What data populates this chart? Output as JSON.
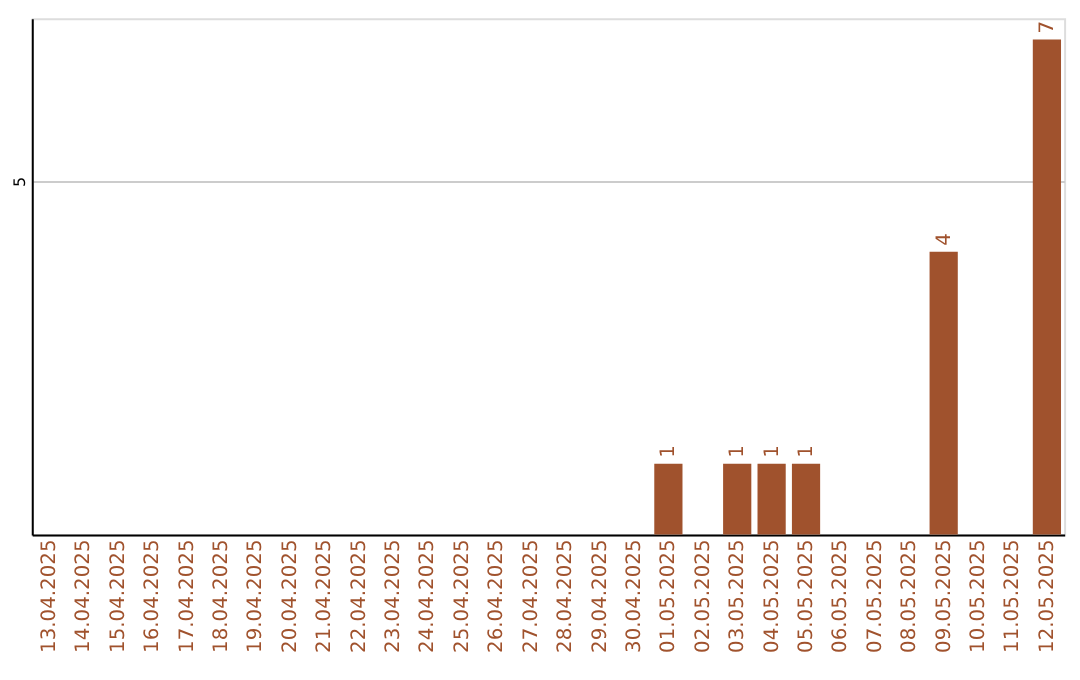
{
  "chart_data": {
    "type": "bar",
    "categories": [
      "13.04.2025",
      "14.04.2025",
      "15.04.2025",
      "16.04.2025",
      "17.04.2025",
      "18.04.2025",
      "19.04.2025",
      "20.04.2025",
      "21.04.2025",
      "22.04.2025",
      "23.04.2025",
      "24.04.2025",
      "25.04.2025",
      "26.04.2025",
      "27.04.2025",
      "28.04.2025",
      "29.04.2025",
      "30.04.2025",
      "01.05.2025",
      "02.05.2025",
      "03.05.2025",
      "04.05.2025",
      "05.05.2025",
      "06.05.2025",
      "07.05.2025",
      "08.05.2025",
      "09.05.2025",
      "10.05.2025",
      "11.05.2025",
      "12.05.2025"
    ],
    "values": [
      null,
      null,
      null,
      null,
      null,
      null,
      null,
      null,
      null,
      null,
      null,
      null,
      null,
      null,
      null,
      null,
      null,
      null,
      1,
      null,
      1,
      1,
      1,
      null,
      null,
      null,
      4,
      null,
      null,
      7
    ],
    "color": "#a0522d",
    "ylim": [
      0,
      7.3
    ],
    "yticks": [
      5
    ],
    "grid": "y",
    "data_labels": true
  }
}
